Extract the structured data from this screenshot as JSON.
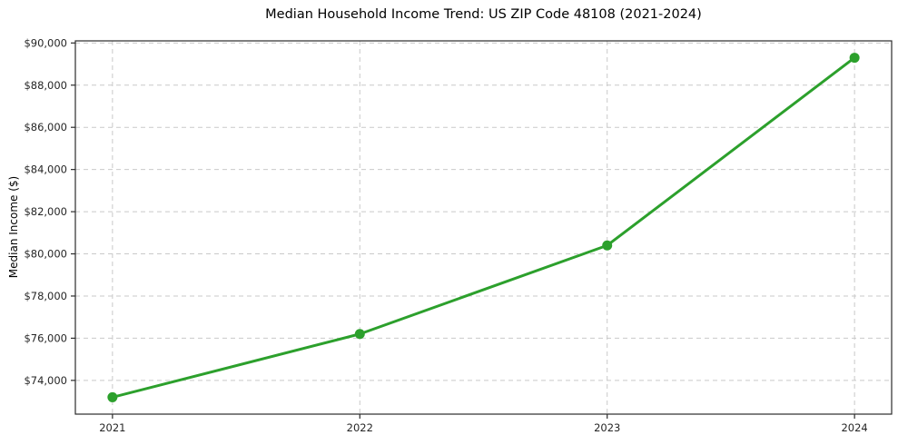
{
  "chart_data": {
    "type": "line",
    "title": "Median Household Income Trend: US ZIP Code 48108 (2021-2024)",
    "xlabel": "",
    "ylabel": "Median Income ($)",
    "x": [
      2021,
      2022,
      2023,
      2024
    ],
    "series": [
      {
        "name": "Median Household Income",
        "values": [
          73200,
          76200,
          80400,
          89300
        ]
      }
    ],
    "xtick_labels": [
      "2021",
      "2022",
      "2023",
      "2024"
    ],
    "ytick_values": [
      74000,
      76000,
      78000,
      80000,
      82000,
      84000,
      86000,
      88000,
      90000
    ],
    "ytick_labels": [
      "$74,000",
      "$76,000",
      "$78,000",
      "$80,000",
      "$82,000",
      "$84,000",
      "$86,000",
      "$88,000",
      "$90,000"
    ],
    "xlim": [
      2020.85,
      2024.15
    ],
    "ylim": [
      72400,
      90100
    ],
    "grid": true,
    "grid_style": "dashed",
    "legend_position": "none",
    "colors": {
      "line": "#2ca02c",
      "marker": "#2ca02c",
      "grid": "#c9c9c9",
      "spine": "#2b2b2b",
      "text": "#262626",
      "background": "#ffffff"
    }
  }
}
